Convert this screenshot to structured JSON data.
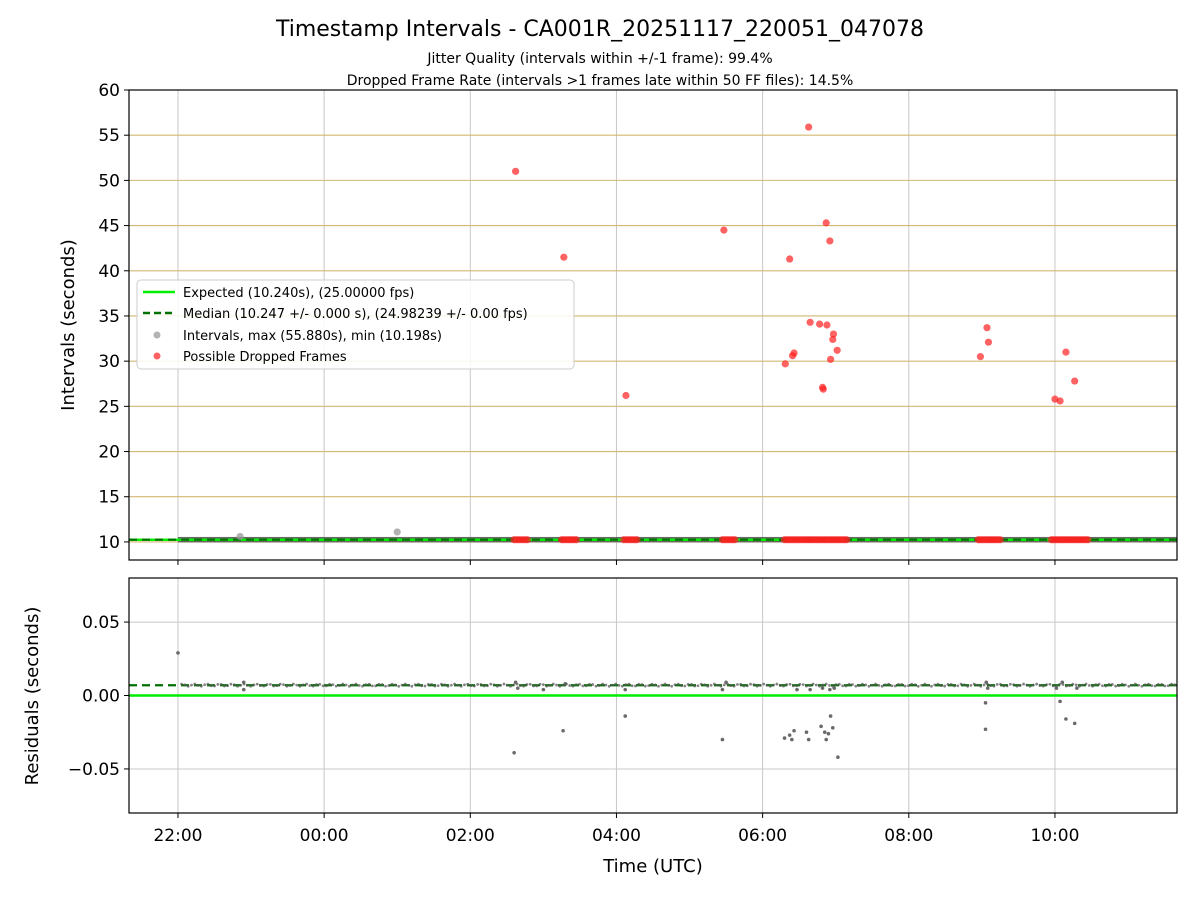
{
  "figure": {
    "title": "Timestamp Intervals - CA001R_20251117_220051_047078",
    "subtitle_line1": "Jitter Quality (intervals within +/-1 frame): 99.4%",
    "subtitle_line2": "Dropped Frame Rate (intervals >1 frames late within 50 FF files): 14.5%"
  },
  "colors": {
    "expected": "#00ee00",
    "median": "#007000",
    "intervals": "#999999",
    "dropped": "#ff2020",
    "hgrid_top": "#d2b872",
    "grid": "#c8c8c8",
    "residual_points": "#5a5a5a",
    "interval_band": "#4d4d4d"
  },
  "legend": {
    "expected": "Expected (10.240s), (25.00000 fps)",
    "median": "Median (10.247 +/- 0.000 s), (24.98239 +/- 0.00 fps)",
    "intervals": "Intervals, max (55.880s), min (10.198s)",
    "dropped": "Possible Dropped Frames"
  },
  "chart_data": [
    {
      "type": "scatter",
      "title": "Timestamp Intervals - CA001R_20251117_220051_047078",
      "xlabel": "",
      "ylabel": "Intervals (seconds)",
      "xlim_hours": [
        21.33,
        35.67
      ],
      "ylim": [
        8,
        60
      ],
      "yticks": [
        10,
        15,
        20,
        25,
        30,
        35,
        40,
        45,
        50,
        55,
        60
      ],
      "expected_interval": 10.24,
      "median_interval": 10.247,
      "band_start_hour": 22.0,
      "band_end_hour": 35.67,
      "intervals_outliers": [
        {
          "x": 22.85,
          "y": 10.6
        },
        {
          "x": 25.0,
          "y": 11.1
        }
      ],
      "dropped_frame_clusters_at_10": [
        {
          "start": 26.6,
          "end": 26.78
        },
        {
          "start": 27.25,
          "end": 27.45
        },
        {
          "start": 28.1,
          "end": 28.28
        },
        {
          "start": 29.45,
          "end": 29.62
        },
        {
          "start": 30.3,
          "end": 31.15
        },
        {
          "start": 32.95,
          "end": 33.25
        },
        {
          "start": 33.95,
          "end": 34.45
        }
      ],
      "dropped_frames": [
        {
          "x": 26.62,
          "y": 51.0
        },
        {
          "x": 27.28,
          "y": 41.5
        },
        {
          "x": 28.13,
          "y": 26.2
        },
        {
          "x": 29.47,
          "y": 44.5
        },
        {
          "x": 30.63,
          "y": 55.9
        },
        {
          "x": 30.37,
          "y": 41.3
        },
        {
          "x": 30.87,
          "y": 45.3
        },
        {
          "x": 30.92,
          "y": 43.3
        },
        {
          "x": 30.65,
          "y": 34.3
        },
        {
          "x": 30.78,
          "y": 34.1
        },
        {
          "x": 30.88,
          "y": 34.0
        },
        {
          "x": 30.97,
          "y": 33.0
        },
        {
          "x": 30.96,
          "y": 32.4
        },
        {
          "x": 31.02,
          "y": 31.2
        },
        {
          "x": 30.93,
          "y": 30.2
        },
        {
          "x": 30.43,
          "y": 30.9
        },
        {
          "x": 30.41,
          "y": 30.6
        },
        {
          "x": 30.31,
          "y": 29.7
        },
        {
          "x": 30.82,
          "y": 27.1
        },
        {
          "x": 30.83,
          "y": 26.9
        },
        {
          "x": 33.07,
          "y": 33.7
        },
        {
          "x": 33.09,
          "y": 32.1
        },
        {
          "x": 32.98,
          "y": 30.5
        },
        {
          "x": 34.15,
          "y": 31.0
        },
        {
          "x": 34.27,
          "y": 27.8
        },
        {
          "x": 34.0,
          "y": 25.8
        },
        {
          "x": 34.07,
          "y": 25.6
        }
      ]
    },
    {
      "type": "scatter",
      "xlabel": "Time (UTC)",
      "ylabel": "Residuals (seconds)",
      "xlim_hours": [
        21.33,
        35.67
      ],
      "ylim": [
        -0.08,
        0.08
      ],
      "yticks": [
        0.05,
        0.0,
        -0.05
      ],
      "ytick_labels": [
        "0.05",
        "0.00",
        "−0.05"
      ],
      "xticks_hours": [
        22,
        24,
        26,
        28,
        30,
        32,
        34
      ],
      "xtick_labels": [
        "22:00",
        "00:00",
        "02:00",
        "04:00",
        "06:00",
        "08:00",
        "10:00"
      ],
      "expected_residual": 0.0,
      "median_residual": 0.007,
      "residual_band_value": 0.007,
      "residual_outliers": [
        {
          "x": 22.0,
          "y": 0.029
        },
        {
          "x": 22.9,
          "y": 0.009
        },
        {
          "x": 22.9,
          "y": 0.004
        },
        {
          "x": 26.6,
          "y": -0.039
        },
        {
          "x": 26.62,
          "y": 0.009
        },
        {
          "x": 26.65,
          "y": 0.005
        },
        {
          "x": 27.0,
          "y": 0.004
        },
        {
          "x": 27.27,
          "y": -0.024
        },
        {
          "x": 27.3,
          "y": 0.008
        },
        {
          "x": 28.12,
          "y": -0.014
        },
        {
          "x": 28.12,
          "y": 0.004
        },
        {
          "x": 29.45,
          "y": -0.03
        },
        {
          "x": 29.45,
          "y": 0.004
        },
        {
          "x": 29.5,
          "y": 0.009
        },
        {
          "x": 30.3,
          "y": -0.029
        },
        {
          "x": 30.37,
          "y": -0.027
        },
        {
          "x": 30.4,
          "y": -0.03
        },
        {
          "x": 30.43,
          "y": -0.024
        },
        {
          "x": 30.47,
          "y": 0.004
        },
        {
          "x": 30.6,
          "y": -0.025
        },
        {
          "x": 30.63,
          "y": -0.03
        },
        {
          "x": 30.65,
          "y": 0.004
        },
        {
          "x": 30.8,
          "y": -0.021
        },
        {
          "x": 30.82,
          "y": 0.005
        },
        {
          "x": 30.85,
          "y": -0.025
        },
        {
          "x": 30.87,
          "y": -0.03
        },
        {
          "x": 30.9,
          "y": -0.026
        },
        {
          "x": 30.92,
          "y": 0.004
        },
        {
          "x": 30.93,
          "y": -0.014
        },
        {
          "x": 30.96,
          "y": -0.022
        },
        {
          "x": 30.98,
          "y": 0.005
        },
        {
          "x": 31.03,
          "y": -0.042
        },
        {
          "x": 33.05,
          "y": -0.005
        },
        {
          "x": 33.05,
          "y": -0.023
        },
        {
          "x": 33.06,
          "y": 0.009
        },
        {
          "x": 33.08,
          "y": 0.005
        },
        {
          "x": 34.02,
          "y": 0.005
        },
        {
          "x": 34.07,
          "y": -0.004
        },
        {
          "x": 34.1,
          "y": 0.009
        },
        {
          "x": 34.15,
          "y": -0.016
        },
        {
          "x": 34.27,
          "y": -0.019
        },
        {
          "x": 34.3,
          "y": 0.005
        }
      ]
    }
  ]
}
